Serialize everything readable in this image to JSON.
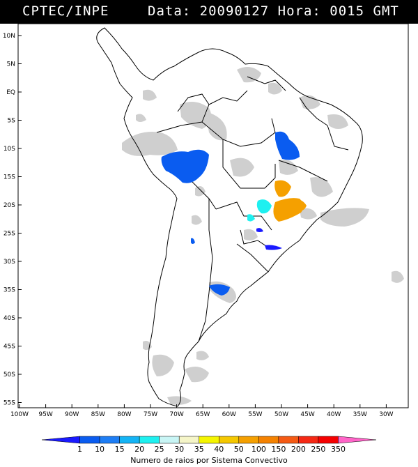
{
  "header": {
    "org": "CPTEC/INPE",
    "data_label": "Data:",
    "date": "20090127",
    "hora_label": "Hora:",
    "time": "0015",
    "tz": "GMT"
  },
  "map": {
    "lat_labels": [
      "10N",
      "5N",
      "EQ",
      "5S",
      "10S",
      "15S",
      "20S",
      "25S",
      "30S",
      "35S",
      "40S",
      "45S",
      "50S",
      "55S"
    ],
    "lon_labels": [
      "100W",
      "95W",
      "90W",
      "85W",
      "80W",
      "75W",
      "70W",
      "65W",
      "60W",
      "55W",
      "50W",
      "45W",
      "40W",
      "35W",
      "30W"
    ],
    "land_color": "#ffffff",
    "cloud_color": "#c8c8c8"
  },
  "legend": {
    "caption": "Numero de raios por Sistema Convectivo",
    "values": [
      "1",
      "10",
      "15",
      "20",
      "25",
      "30",
      "35",
      "40",
      "50",
      "100",
      "150",
      "200",
      "250",
      "350"
    ],
    "colors": [
      "#1a1aff",
      "#0a5cf0",
      "#1e7ef5",
      "#14b4f5",
      "#1ef0f0",
      "#c8f5f5",
      "#f5f5c8",
      "#f5f500",
      "#f5c800",
      "#f5a000",
      "#f58200",
      "#f55a14",
      "#f52814",
      "#f50000",
      "#ff64c8"
    ]
  }
}
